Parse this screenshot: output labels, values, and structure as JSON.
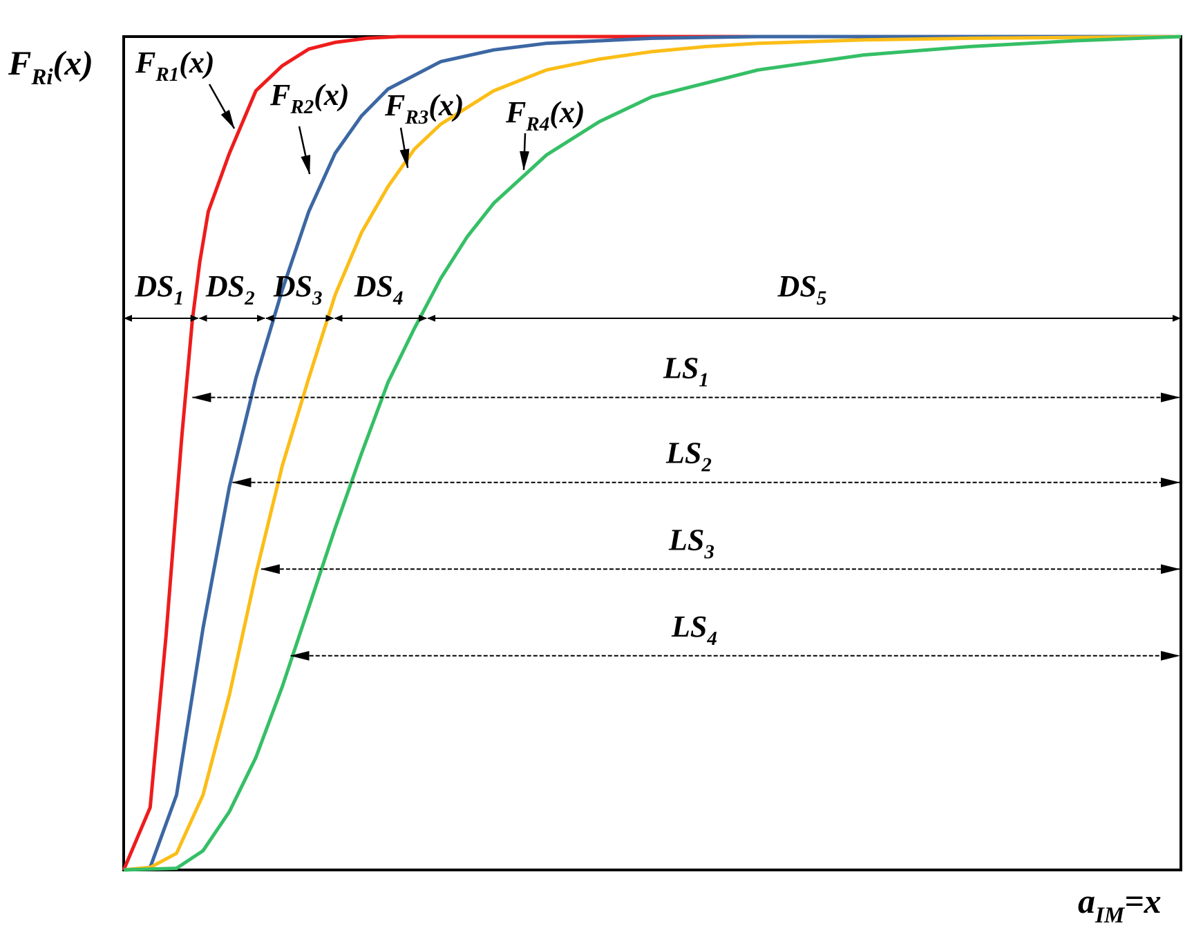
{
  "chart_data": {
    "type": "line",
    "title": "",
    "ylabel": {
      "main": "F",
      "sub": "Ri",
      "tail": "(x)"
    },
    "xlabel": {
      "main": "a",
      "sub": "IM",
      "tail": "=x"
    },
    "grid": false,
    "xlim": [
      0,
      1
    ],
    "ylim": [
      0,
      1
    ],
    "series": [
      {
        "name": "F_R1(x)",
        "label": {
          "main": "F",
          "sub": "R1",
          "tail": "(x)"
        },
        "color": "#ee1c1c",
        "x": [
          0,
          0.025,
          0.04,
          0.055,
          0.065,
          0.072,
          0.08,
          0.1,
          0.125,
          0.15,
          0.175,
          0.2,
          0.23,
          0.26,
          0.3,
          0.4,
          1.0
        ],
        "y": [
          0,
          0.075,
          0.28,
          0.52,
          0.66,
          0.73,
          0.79,
          0.86,
          0.935,
          0.965,
          0.985,
          0.993,
          0.998,
          1.0,
          1.0,
          1.0,
          1.0
        ]
      },
      {
        "name": "F_R2(x)",
        "label": {
          "main": "F",
          "sub": "R2",
          "tail": "(x)"
        },
        "color": "#3c67a3",
        "x": [
          0,
          0.025,
          0.05,
          0.075,
          0.1,
          0.125,
          0.15,
          0.175,
          0.2,
          0.225,
          0.25,
          0.3,
          0.35,
          0.4,
          0.5,
          0.6,
          0.8,
          1.0
        ],
        "y": [
          0,
          0.003,
          0.09,
          0.29,
          0.46,
          0.59,
          0.696,
          0.79,
          0.86,
          0.905,
          0.937,
          0.97,
          0.984,
          0.992,
          0.998,
          1.0,
          1.0,
          1.0
        ]
      },
      {
        "name": "F_R3(x)",
        "label": {
          "main": "F",
          "sub": "R3",
          "tail": "(x)"
        },
        "color": "#fbbd17",
        "x": [
          0,
          0.025,
          0.05,
          0.075,
          0.1,
          0.125,
          0.15,
          0.175,
          0.2,
          0.225,
          0.25,
          0.275,
          0.3,
          0.35,
          0.4,
          0.45,
          0.5,
          0.55,
          0.6,
          0.7,
          0.8,
          1.0
        ],
        "y": [
          0,
          0.003,
          0.02,
          0.09,
          0.21,
          0.355,
          0.485,
          0.59,
          0.69,
          0.765,
          0.82,
          0.865,
          0.895,
          0.935,
          0.96,
          0.973,
          0.982,
          0.988,
          0.992,
          0.996,
          0.998,
          1.0
        ]
      },
      {
        "name": "F_R4(x)",
        "label": {
          "main": "F",
          "sub": "R4",
          "tail": "(x)"
        },
        "color": "#35bf66",
        "x": [
          0,
          0.05,
          0.075,
          0.1,
          0.125,
          0.15,
          0.175,
          0.2,
          0.225,
          0.25,
          0.275,
          0.3,
          0.325,
          0.35,
          0.4,
          0.45,
          0.5,
          0.6,
          0.7,
          0.8,
          0.9,
          1.0
        ],
        "y": [
          0,
          0.002,
          0.023,
          0.07,
          0.135,
          0.22,
          0.315,
          0.41,
          0.5,
          0.585,
          0.65,
          0.71,
          0.76,
          0.8,
          0.858,
          0.898,
          0.928,
          0.96,
          0.978,
          0.988,
          0.995,
          1.0
        ]
      }
    ],
    "damage_states": {
      "y": 0.662,
      "boundaries": [
        0.0,
        0.071,
        0.134,
        0.199,
        0.287,
        1.0
      ],
      "labels": [
        {
          "main": "DS",
          "sub": "1"
        },
        {
          "main": "DS",
          "sub": "2"
        },
        {
          "main": "DS",
          "sub": "3"
        },
        {
          "main": "DS",
          "sub": "4"
        },
        {
          "main": "DS",
          "sub": "5"
        }
      ]
    },
    "limit_states": [
      {
        "main": "LS",
        "sub": "1",
        "y": 0.567,
        "x_start": 0.065
      },
      {
        "main": "LS",
        "sub": "2",
        "y": 0.465,
        "x_start": 0.103
      },
      {
        "main": "LS",
        "sub": "3",
        "y": 0.361,
        "x_start": 0.13
      },
      {
        "main": "LS",
        "sub": "4",
        "y": 0.257,
        "x_start": 0.158
      }
    ]
  }
}
